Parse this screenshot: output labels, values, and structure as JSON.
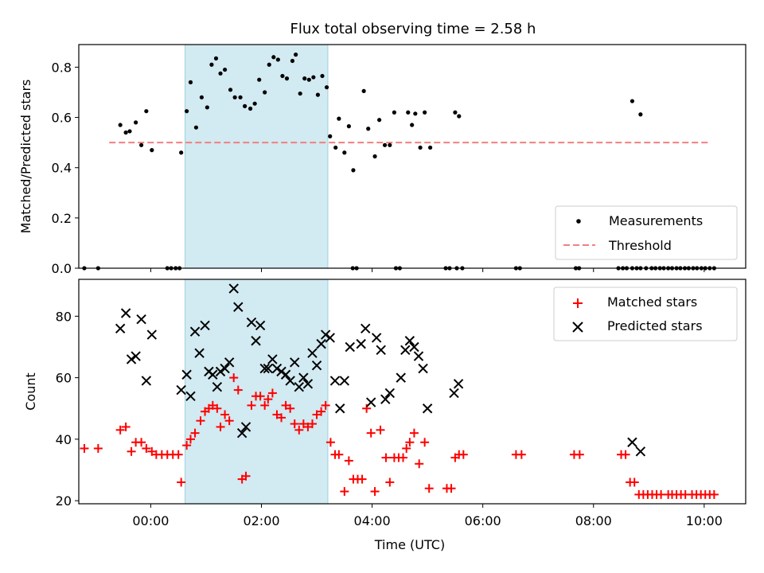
{
  "title": "Flux total observing time = 2.58 h",
  "colors": {
    "measurement": "#000000",
    "threshold": "#f08080",
    "matched": "#ff0000",
    "predicted": "#000000",
    "shade": "#add8e6"
  },
  "chart_data": [
    {
      "type": "scatter",
      "ylabel": "Matched/Predicted stars",
      "xlabel": "",
      "x_unit": "hours (UTC, relative to 00:00)",
      "xlim": [
        -1.3,
        10.75
      ],
      "ylim": [
        0,
        0.89
      ],
      "yticks": [
        0.0,
        0.2,
        0.4,
        0.6,
        0.8
      ],
      "ytick_labels": [
        "0.0",
        "0.2",
        "0.4",
        "0.6",
        "0.8"
      ],
      "shaded_x_range": [
        0.62,
        3.2
      ],
      "grid": false,
      "legend_position": "lower-right",
      "legend": [
        "Measurements",
        "Threshold"
      ],
      "threshold": {
        "name": "Threshold",
        "x": [
          -0.75,
          10.1
        ],
        "value": 0.5
      },
      "series": [
        {
          "name": "Measurements",
          "points": [
            [
              -0.55,
              0.57
            ],
            [
              -0.45,
              0.54
            ],
            [
              -0.38,
              0.545
            ],
            [
              -0.27,
              0.58
            ],
            [
              -0.17,
              0.49
            ],
            [
              -0.08,
              0.625
            ],
            [
              0.02,
              0.47
            ],
            [
              0.55,
              0.46
            ],
            [
              0.65,
              0.625
            ],
            [
              0.72,
              0.74
            ],
            [
              0.82,
              0.56
            ],
            [
              0.92,
              0.68
            ],
            [
              1.02,
              0.64
            ],
            [
              1.1,
              0.81
            ],
            [
              1.18,
              0.835
            ],
            [
              1.26,
              0.775
            ],
            [
              1.34,
              0.79
            ],
            [
              1.44,
              0.71
            ],
            [
              1.52,
              0.68
            ],
            [
              1.62,
              0.68
            ],
            [
              1.7,
              0.645
            ],
            [
              1.8,
              0.635
            ],
            [
              1.88,
              0.655
            ],
            [
              1.96,
              0.75
            ],
            [
              2.06,
              0.7
            ],
            [
              2.14,
              0.81
            ],
            [
              2.22,
              0.84
            ],
            [
              2.3,
              0.83
            ],
            [
              2.38,
              0.765
            ],
            [
              2.46,
              0.755
            ],
            [
              2.56,
              0.825
            ],
            [
              2.62,
              0.85
            ],
            [
              2.7,
              0.695
            ],
            [
              2.78,
              0.755
            ],
            [
              2.86,
              0.75
            ],
            [
              2.94,
              0.76
            ],
            [
              3.02,
              0.69
            ],
            [
              3.1,
              0.765
            ],
            [
              3.18,
              0.72
            ],
            [
              3.24,
              0.525
            ],
            [
              3.34,
              0.48
            ],
            [
              3.4,
              0.595
            ],
            [
              3.5,
              0.46
            ],
            [
              3.58,
              0.565
            ],
            [
              3.66,
              0.39
            ],
            [
              3.85,
              0.705
            ],
            [
              3.93,
              0.555
            ],
            [
              4.05,
              0.445
            ],
            [
              4.13,
              0.59
            ],
            [
              4.23,
              0.49
            ],
            [
              4.32,
              0.49
            ],
            [
              4.4,
              0.62
            ],
            [
              4.65,
              0.62
            ],
            [
              4.72,
              0.57
            ],
            [
              4.78,
              0.615
            ],
            [
              4.87,
              0.48
            ],
            [
              4.95,
              0.62
            ],
            [
              5.05,
              0.48
            ],
            [
              5.5,
              0.62
            ],
            [
              5.57,
              0.605
            ],
            [
              8.7,
              0.665
            ],
            [
              8.85,
              0.612
            ]
          ],
          "zero_points_x": [
            -1.2,
            -0.95,
            0.3,
            0.37,
            0.45,
            0.52,
            3.65,
            3.72,
            4.43,
            4.5,
            5.33,
            5.4,
            5.53,
            5.63,
            6.6,
            6.67,
            7.68,
            7.74,
            8.45,
            8.53,
            8.6,
            8.7,
            8.78,
            8.85,
            8.95,
            9.05,
            9.12,
            9.2,
            9.27,
            9.35,
            9.42,
            9.5,
            9.57,
            9.65,
            9.72,
            9.8,
            9.87,
            9.95,
            10.02,
            10.1,
            10.18
          ]
        }
      ]
    },
    {
      "type": "scatter",
      "ylabel": "Count",
      "xlabel": "Time (UTC)",
      "x_unit": "hours (UTC, relative to 00:00)",
      "xlim": [
        -1.3,
        10.75
      ],
      "ylim": [
        19,
        92
      ],
      "yticks": [
        20,
        40,
        60,
        80
      ],
      "ytick_labels": [
        "20",
        "40",
        "60",
        "80"
      ],
      "xticks": [
        0,
        2,
        4,
        6,
        8,
        10
      ],
      "xtick_labels": [
        "00:00",
        "02:00",
        "04:00",
        "06:00",
        "08:00",
        "10:00"
      ],
      "shaded_x_range": [
        0.62,
        3.2
      ],
      "grid": false,
      "legend_position": "upper-right",
      "legend": [
        "Matched stars",
        "Predicted stars"
      ],
      "series": [
        {
          "name": "Matched stars",
          "marker": "plus",
          "points": [
            [
              -1.2,
              37
            ],
            [
              -0.95,
              37
            ],
            [
              -0.55,
              43
            ],
            [
              -0.45,
              44
            ],
            [
              -0.35,
              36
            ],
            [
              -0.27,
              39
            ],
            [
              -0.17,
              39
            ],
            [
              -0.08,
              37
            ],
            [
              0.02,
              36
            ],
            [
              0.1,
              35
            ],
            [
              0.2,
              35
            ],
            [
              0.3,
              35
            ],
            [
              0.4,
              35
            ],
            [
              0.5,
              35
            ],
            [
              0.55,
              26
            ],
            [
              0.65,
              38
            ],
            [
              0.72,
              40
            ],
            [
              0.8,
              42
            ],
            [
              0.9,
              46
            ],
            [
              0.98,
              49
            ],
            [
              1.05,
              50
            ],
            [
              1.12,
              51
            ],
            [
              1.2,
              50
            ],
            [
              1.26,
              44
            ],
            [
              1.34,
              48
            ],
            [
              1.42,
              46
            ],
            [
              1.5,
              60
            ],
            [
              1.58,
              56
            ],
            [
              1.65,
              27
            ],
            [
              1.72,
              28
            ],
            [
              1.82,
              51
            ],
            [
              1.9,
              54
            ],
            [
              1.98,
              54
            ],
            [
              2.06,
              51
            ],
            [
              2.12,
              53
            ],
            [
              2.2,
              55
            ],
            [
              2.28,
              48
            ],
            [
              2.36,
              47
            ],
            [
              2.44,
              51
            ],
            [
              2.52,
              50
            ],
            [
              2.6,
              45
            ],
            [
              2.68,
              43
            ],
            [
              2.76,
              45
            ],
            [
              2.84,
              44
            ],
            [
              2.92,
              45
            ],
            [
              3.0,
              48
            ],
            [
              3.08,
              49
            ],
            [
              3.16,
              51
            ],
            [
              3.25,
              39
            ],
            [
              3.33,
              35
            ],
            [
              3.4,
              35
            ],
            [
              3.5,
              23
            ],
            [
              3.58,
              33
            ],
            [
              3.66,
              27
            ],
            [
              3.74,
              27
            ],
            [
              3.82,
              27
            ],
            [
              3.9,
              50
            ],
            [
              3.98,
              42
            ],
            [
              4.05,
              23
            ],
            [
              4.15,
              43
            ],
            [
              4.25,
              34
            ],
            [
              4.32,
              26
            ],
            [
              4.4,
              34
            ],
            [
              4.48,
              34
            ],
            [
              4.56,
              34
            ],
            [
              4.62,
              37
            ],
            [
              4.68,
              39
            ],
            [
              4.76,
              42
            ],
            [
              4.85,
              32
            ],
            [
              4.95,
              39
            ],
            [
              5.03,
              24
            ],
            [
              5.35,
              24
            ],
            [
              5.43,
              24
            ],
            [
              5.5,
              34
            ],
            [
              5.57,
              35
            ],
            [
              5.65,
              35
            ],
            [
              6.6,
              35
            ],
            [
              6.7,
              35
            ],
            [
              7.65,
              35
            ],
            [
              7.75,
              35
            ],
            [
              8.5,
              35
            ],
            [
              8.58,
              35
            ],
            [
              8.66,
              26
            ],
            [
              8.74,
              26
            ],
            [
              8.82,
              22
            ],
            [
              8.9,
              22
            ],
            [
              8.98,
              22
            ],
            [
              9.06,
              22
            ],
            [
              9.14,
              22
            ],
            [
              9.22,
              22
            ],
            [
              9.35,
              22
            ],
            [
              9.42,
              22
            ],
            [
              9.5,
              22
            ],
            [
              9.58,
              22
            ],
            [
              9.66,
              22
            ],
            [
              9.78,
              22
            ],
            [
              9.86,
              22
            ],
            [
              9.94,
              22
            ],
            [
              10.02,
              22
            ],
            [
              10.1,
              22
            ],
            [
              10.18,
              22
            ]
          ]
        },
        {
          "name": "Predicted stars",
          "marker": "x",
          "points": [
            [
              -0.55,
              76
            ],
            [
              -0.45,
              81
            ],
            [
              -0.35,
              66
            ],
            [
              -0.27,
              67
            ],
            [
              -0.17,
              79
            ],
            [
              -0.08,
              59
            ],
            [
              0.02,
              74
            ],
            [
              0.55,
              56
            ],
            [
              0.65,
              61
            ],
            [
              0.72,
              54
            ],
            [
              0.8,
              75
            ],
            [
              0.88,
              68
            ],
            [
              0.98,
              77
            ],
            [
              1.05,
              62
            ],
            [
              1.12,
              61
            ],
            [
              1.2,
              57
            ],
            [
              1.26,
              62
            ],
            [
              1.34,
              63
            ],
            [
              1.42,
              65
            ],
            [
              1.5,
              89
            ],
            [
              1.58,
              83
            ],
            [
              1.65,
              42
            ],
            [
              1.72,
              44
            ],
            [
              1.82,
              78
            ],
            [
              1.9,
              72
            ],
            [
              1.98,
              77
            ],
            [
              2.06,
              63
            ],
            [
              2.12,
              63
            ],
            [
              2.2,
              66
            ],
            [
              2.28,
              63
            ],
            [
              2.36,
              62
            ],
            [
              2.44,
              61
            ],
            [
              2.52,
              59
            ],
            [
              2.6,
              65
            ],
            [
              2.68,
              57
            ],
            [
              2.76,
              60
            ],
            [
              2.84,
              58
            ],
            [
              2.92,
              68
            ],
            [
              3.0,
              64
            ],
            [
              3.08,
              71
            ],
            [
              3.16,
              74
            ],
            [
              3.24,
              73
            ],
            [
              3.33,
              59
            ],
            [
              3.42,
              50
            ],
            [
              3.5,
              59
            ],
            [
              3.6,
              70
            ],
            [
              3.8,
              71
            ],
            [
              3.88,
              76
            ],
            [
              3.98,
              52
            ],
            [
              4.08,
              73
            ],
            [
              4.16,
              69
            ],
            [
              4.24,
              53
            ],
            [
              4.32,
              55
            ],
            [
              4.52,
              60
            ],
            [
              4.6,
              69
            ],
            [
              4.68,
              72
            ],
            [
              4.76,
              70
            ],
            [
              4.84,
              67
            ],
            [
              4.92,
              63
            ],
            [
              5.0,
              50
            ],
            [
              5.48,
              55
            ],
            [
              5.56,
              58
            ],
            [
              8.7,
              39
            ],
            [
              8.85,
              36
            ]
          ]
        }
      ]
    }
  ]
}
